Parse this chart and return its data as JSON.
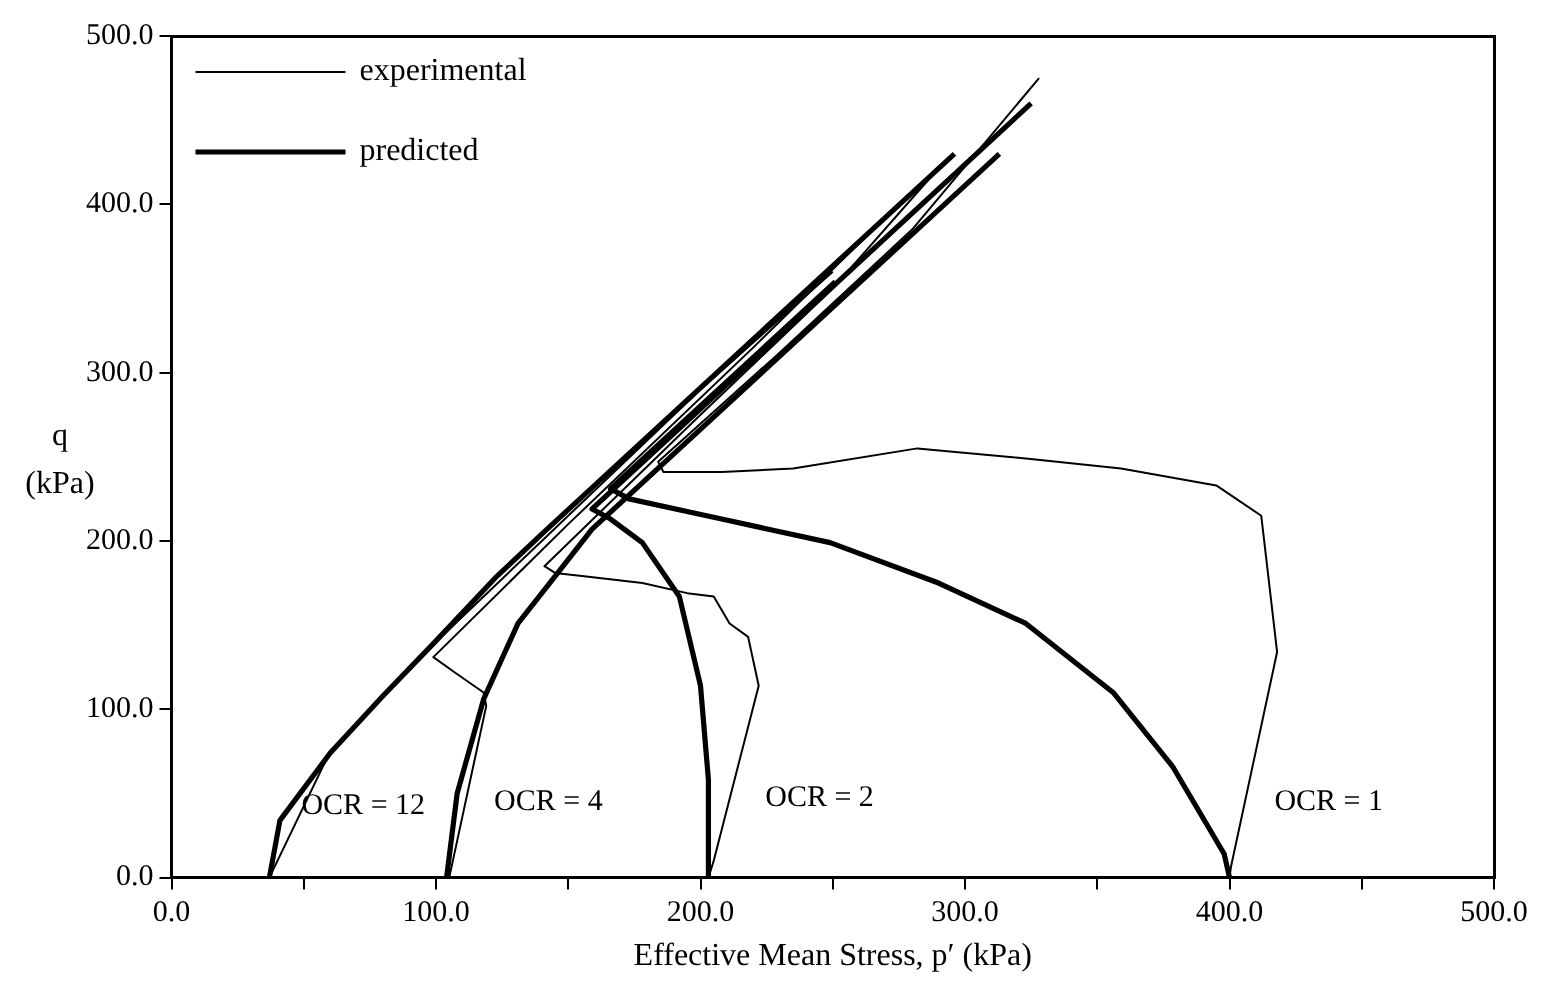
{
  "chart_data": {
    "type": "line",
    "xlabel": "Effective Mean Stress, p′ (kPa)",
    "ylabel": "q (kPa)",
    "xlim": [
      0,
      500
    ],
    "ylim": [
      0,
      500
    ],
    "xticks": [
      {
        "value": 0,
        "label": "0.0"
      },
      {
        "value": 50,
        "label": null
      },
      {
        "value": 100,
        "label": "100.0"
      },
      {
        "value": 150,
        "label": null
      },
      {
        "value": 200,
        "label": "200.0"
      },
      {
        "value": 250,
        "label": null
      },
      {
        "value": 300,
        "label": "300.0"
      },
      {
        "value": 350,
        "label": null
      },
      {
        "value": 400,
        "label": "400.0"
      },
      {
        "value": 450,
        "label": null
      },
      {
        "value": 500,
        "label": "500.0"
      }
    ],
    "yticks": [
      {
        "value": 0,
        "label": "0.0"
      },
      {
        "value": 100,
        "label": "100.0"
      },
      {
        "value": 200,
        "label": "200.0"
      },
      {
        "value": 300,
        "label": "300.0"
      },
      {
        "value": 400,
        "label": "400.0"
      },
      {
        "value": 500,
        "label": "500.0"
      }
    ],
    "grid": false,
    "legend": "top left",
    "marker": "none",
    "line_style": "solid",
    "series": [
      {
        "name": "experimental",
        "color": "#000000",
        "x": [
          400,
          400.5,
          418,
          412,
          395,
          359,
          323,
          282,
          235,
          208,
          186,
          184,
          230,
          280,
          328
        ],
        "values": [
          0,
          6,
          134,
          215,
          233,
          243,
          249,
          255,
          243,
          241,
          241,
          247,
          312,
          385,
          475
        ]
      },
      {
        "color": "#000000",
        "x": [
          203,
          205,
          222,
          218,
          211,
          205,
          195,
          178,
          156,
          145,
          141,
          200,
          250,
          292
        ],
        "values": [
          0,
          10,
          114,
          143,
          151,
          167,
          169,
          175,
          179,
          181,
          185,
          275,
          350,
          425
        ]
      },
      {
        "color": "#000000",
        "x": [
          105,
          119,
          118,
          107,
          99,
          150,
          220,
          275
        ],
        "values": [
          0,
          102,
          110,
          122,
          131,
          210,
          315,
          400
        ]
      },
      {
        "color": "#000000",
        "x": [
          37,
          60,
          90,
          140,
          200,
          250
        ],
        "values": [
          0,
          75,
          125,
          200,
          290,
          360
        ]
      },
      {
        "name": "predicted",
        "color": "#000000",
        "x": [
          400,
          398,
          378.5,
          356,
          323,
          290,
          249,
          208,
          173,
          166,
          251
        ],
        "values": [
          0,
          14,
          66,
          110,
          151,
          175,
          199,
          213,
          225,
          231,
          354
        ]
      },
      {
        "color": "#000000",
        "x": [
          203,
          203,
          200,
          192,
          178,
          166,
          159,
          325
        ],
        "values": [
          0,
          58,
          114,
          167,
          199,
          213,
          219,
          460
        ]
      },
      {
        "color": "#000000",
        "x": [
          104,
          108,
          118,
          131,
          145,
          159,
          313
        ],
        "values": [
          0,
          50,
          106,
          151,
          179,
          207,
          430
        ]
      },
      {
        "color": "#000000",
        "x": [
          37,
          41,
          60,
          80,
          99,
          123,
          142,
          296
        ],
        "values": [
          0,
          34,
          74,
          108,
          139,
          179,
          207,
          430
        ]
      }
    ],
    "annotations": [
      "OCR = 12",
      "OCR = 4",
      "OCR = 2",
      "OCR = 1"
    ]
  }
}
